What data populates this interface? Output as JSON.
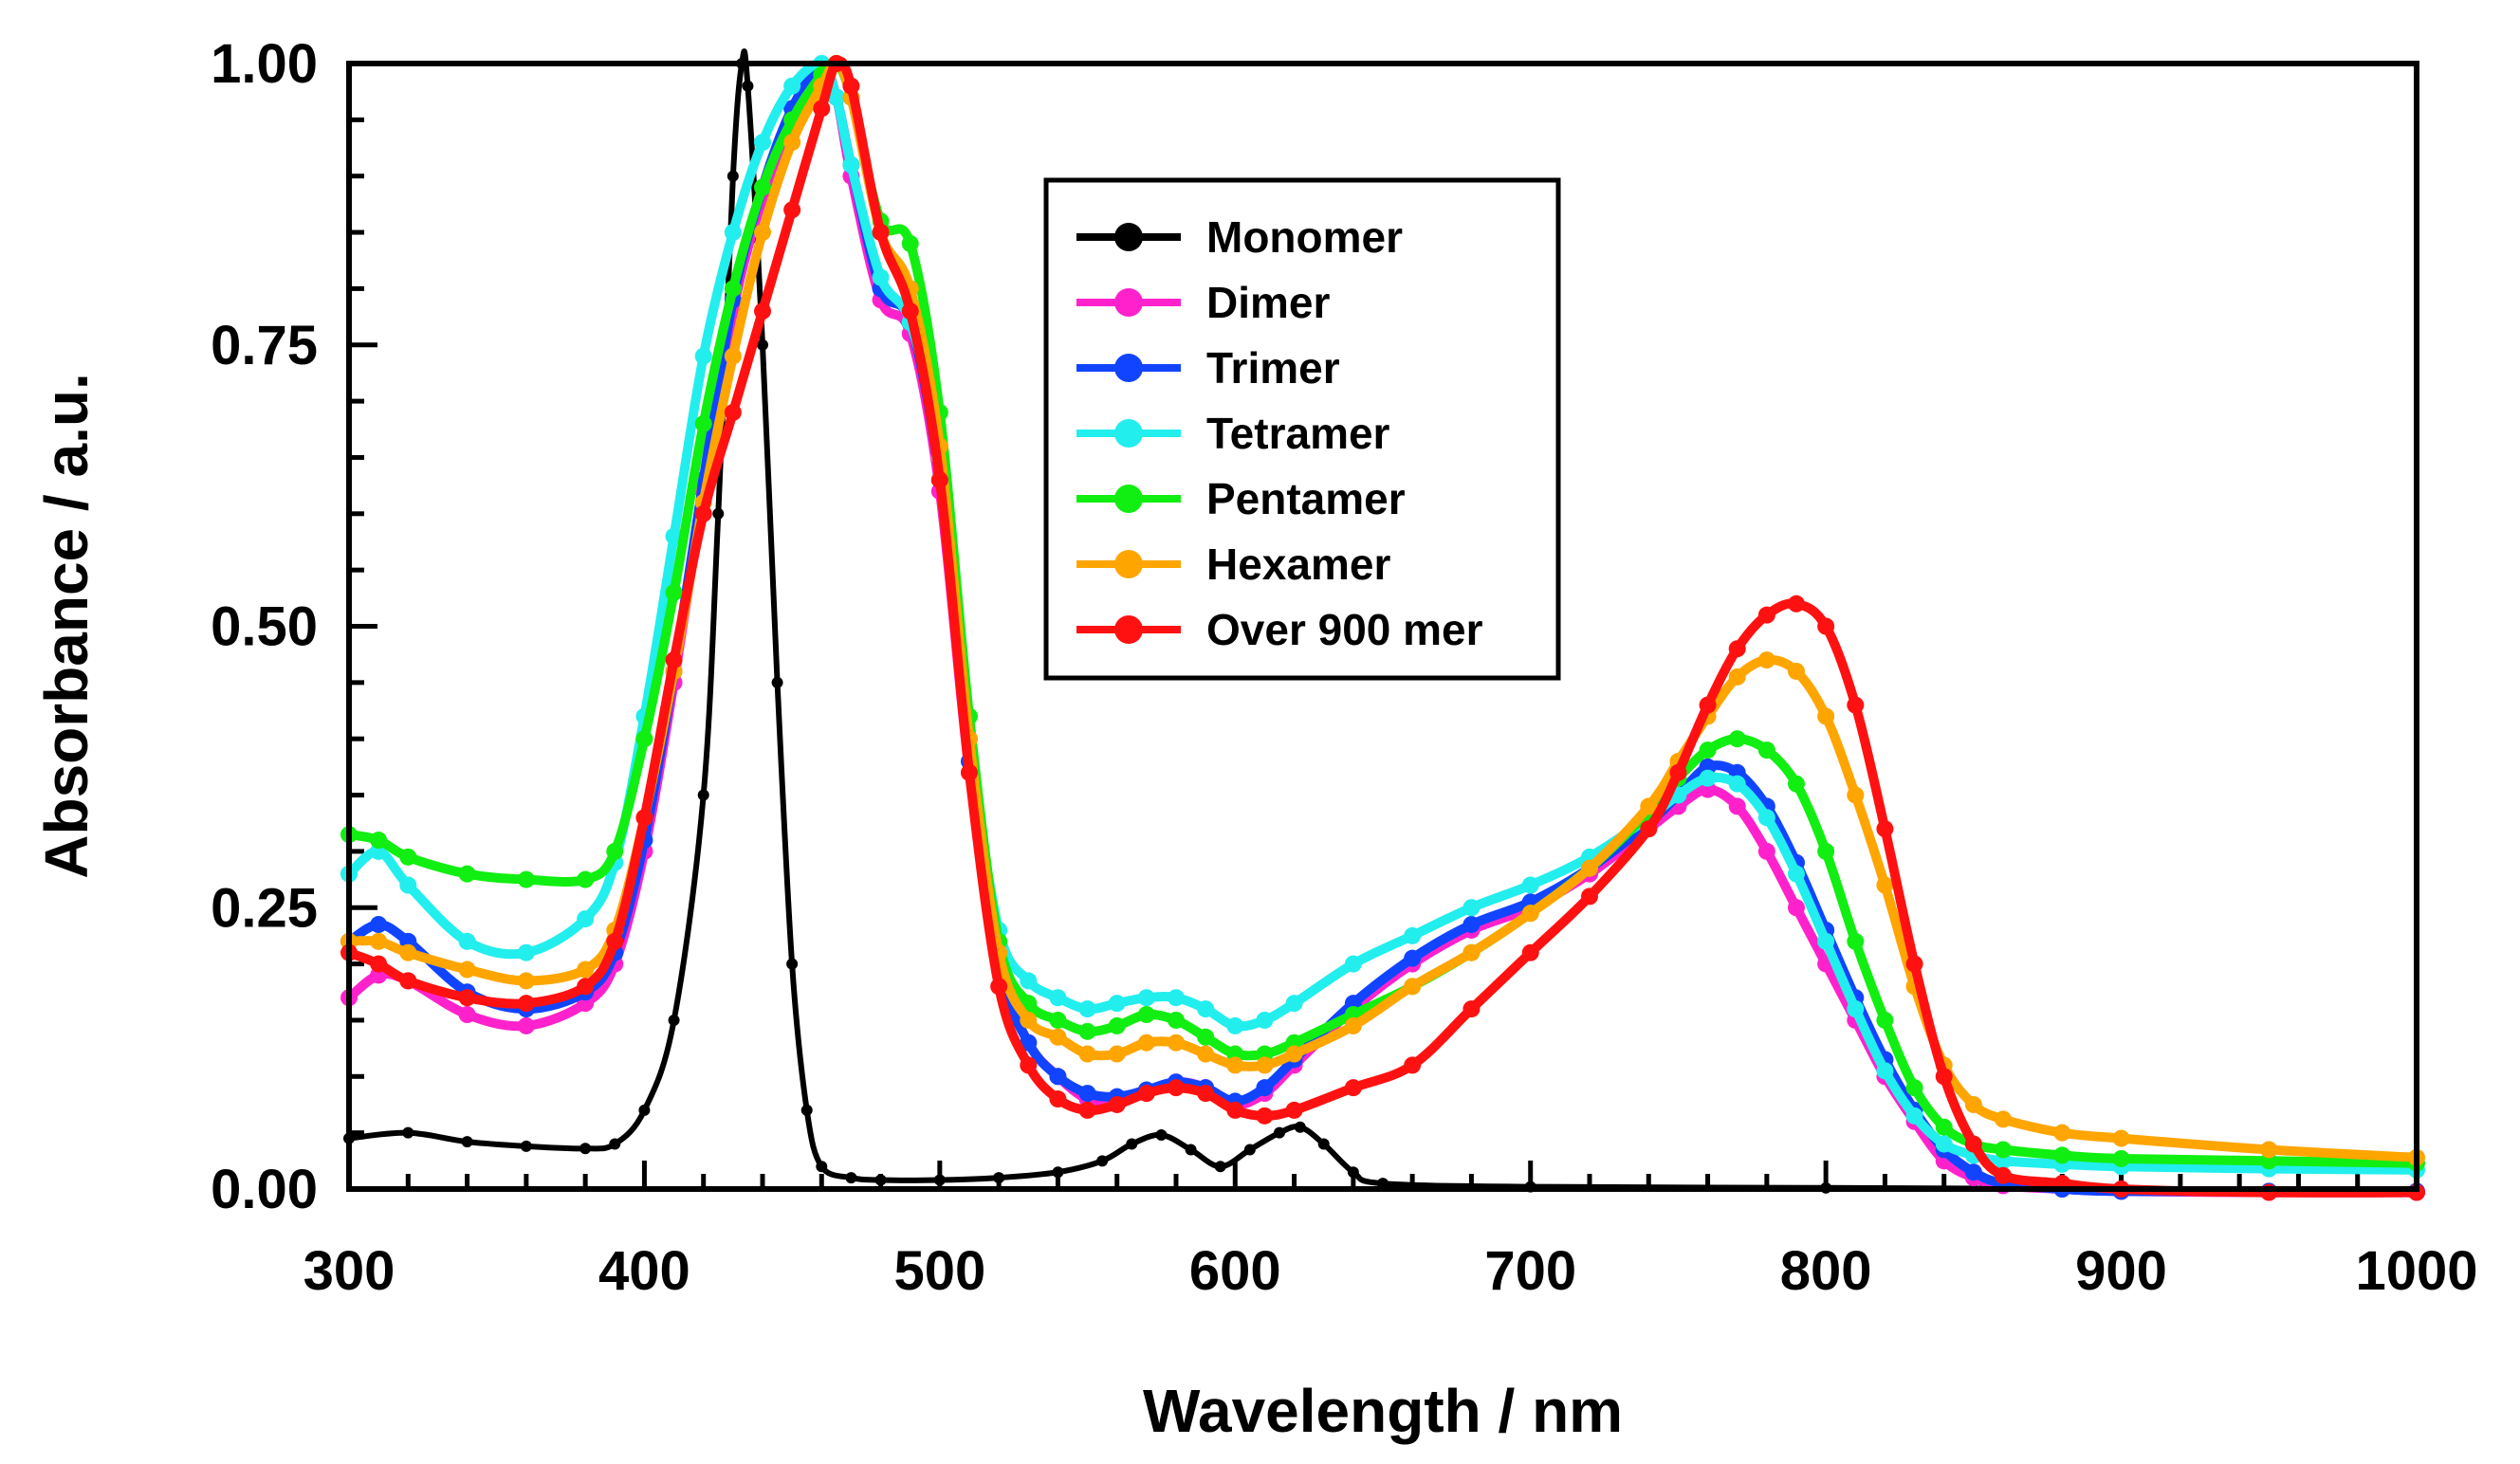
{
  "chart_data": {
    "type": "line",
    "xlabel": "Wavelength / nm",
    "ylabel": "Absorbance / a.u.",
    "xlim": [
      300,
      1000
    ],
    "ylim": [
      0,
      1
    ],
    "xticks": [
      300,
      400,
      500,
      600,
      700,
      800,
      900,
      1000
    ],
    "xtick_labels": [
      "300",
      "400",
      "500",
      "600",
      "700",
      "800",
      "900",
      "1000"
    ],
    "yticks": [
      0,
      0.25,
      0.5,
      0.75,
      1.0
    ],
    "ytick_labels": [
      "0.00",
      "0.25",
      "0.50",
      "0.75",
      "1.00"
    ],
    "legend_position": "top-center",
    "series": [
      {
        "name": "Monomer",
        "color": "#000000",
        "x": [
          300,
          320,
          340,
          360,
          380,
          390,
          400,
          410,
          420,
          425,
          430,
          433,
          435,
          440,
          445,
          450,
          455,
          460,
          470,
          480,
          500,
          520,
          540,
          555,
          565,
          575,
          585,
          595,
          605,
          615,
          622,
          630,
          640,
          650,
          700,
          800,
          900,
          1000
        ],
        "y": [
          0.045,
          0.05,
          0.042,
          0.038,
          0.036,
          0.04,
          0.07,
          0.15,
          0.35,
          0.6,
          0.9,
          1.0,
          0.98,
          0.75,
          0.45,
          0.2,
          0.07,
          0.02,
          0.01,
          0.008,
          0.008,
          0.01,
          0.015,
          0.025,
          0.04,
          0.048,
          0.035,
          0.02,
          0.035,
          0.05,
          0.055,
          0.04,
          0.015,
          0.005,
          0.002,
          0.001,
          0.0,
          0.0
        ]
      },
      {
        "name": "Dimer",
        "color": "#ff22cc",
        "x": [
          300,
          310,
          320,
          340,
          360,
          380,
          390,
          400,
          410,
          420,
          430,
          440,
          450,
          460,
          465,
          470,
          480,
          490,
          500,
          510,
          520,
          530,
          540,
          550,
          560,
          570,
          580,
          590,
          600,
          610,
          620,
          640,
          660,
          680,
          700,
          720,
          740,
          750,
          760,
          770,
          780,
          790,
          800,
          810,
          820,
          830,
          840,
          850,
          860,
          880,
          900,
          950,
          1000
        ],
        "y": [
          0.17,
          0.19,
          0.185,
          0.155,
          0.145,
          0.165,
          0.2,
          0.3,
          0.45,
          0.62,
          0.78,
          0.88,
          0.95,
          0.995,
          0.97,
          0.9,
          0.79,
          0.76,
          0.62,
          0.37,
          0.2,
          0.13,
          0.1,
          0.08,
          0.08,
          0.085,
          0.095,
          0.09,
          0.075,
          0.085,
          0.11,
          0.16,
          0.2,
          0.23,
          0.25,
          0.28,
          0.32,
          0.34,
          0.355,
          0.34,
          0.3,
          0.25,
          0.2,
          0.15,
          0.1,
          0.06,
          0.025,
          0.01,
          0.003,
          0.0,
          -0.002,
          -0.003,
          -0.003
        ]
      },
      {
        "name": "Trimer",
        "color": "#1144ff",
        "x": [
          300,
          310,
          320,
          340,
          360,
          380,
          390,
          400,
          410,
          420,
          430,
          440,
          450,
          460,
          465,
          470,
          480,
          490,
          500,
          510,
          520,
          530,
          540,
          550,
          560,
          570,
          580,
          590,
          600,
          610,
          620,
          640,
          660,
          680,
          700,
          720,
          740,
          750,
          760,
          770,
          780,
          790,
          800,
          810,
          820,
          830,
          840,
          850,
          860,
          880,
          900,
          950,
          1000
        ],
        "y": [
          0.22,
          0.235,
          0.22,
          0.175,
          0.16,
          0.175,
          0.21,
          0.31,
          0.46,
          0.63,
          0.79,
          0.89,
          0.96,
          0.998,
          0.97,
          0.91,
          0.8,
          0.77,
          0.63,
          0.38,
          0.2,
          0.13,
          0.1,
          0.085,
          0.082,
          0.088,
          0.095,
          0.09,
          0.078,
          0.09,
          0.115,
          0.165,
          0.205,
          0.235,
          0.255,
          0.285,
          0.325,
          0.35,
          0.375,
          0.37,
          0.34,
          0.29,
          0.23,
          0.17,
          0.115,
          0.07,
          0.035,
          0.015,
          0.005,
          0.0,
          -0.002,
          -0.002,
          -0.002
        ]
      },
      {
        "name": "Tetramer",
        "color": "#22eeee",
        "x": [
          300,
          310,
          320,
          340,
          360,
          380,
          390,
          400,
          410,
          420,
          430,
          440,
          450,
          460,
          465,
          470,
          480,
          490,
          500,
          510,
          520,
          530,
          540,
          550,
          560,
          570,
          580,
          590,
          600,
          610,
          620,
          640,
          660,
          680,
          700,
          720,
          740,
          750,
          760,
          770,
          780,
          790,
          800,
          810,
          820,
          830,
          840,
          850,
          860,
          880,
          900,
          950,
          1000
        ],
        "y": [
          0.28,
          0.3,
          0.27,
          0.22,
          0.21,
          0.24,
          0.29,
          0.42,
          0.58,
          0.74,
          0.85,
          0.93,
          0.98,
          1.0,
          0.97,
          0.91,
          0.81,
          0.77,
          0.65,
          0.4,
          0.23,
          0.185,
          0.17,
          0.16,
          0.165,
          0.17,
          0.17,
          0.16,
          0.145,
          0.15,
          0.165,
          0.2,
          0.225,
          0.25,
          0.27,
          0.295,
          0.33,
          0.35,
          0.365,
          0.36,
          0.33,
          0.28,
          0.22,
          0.16,
          0.105,
          0.065,
          0.04,
          0.03,
          0.025,
          0.022,
          0.02,
          0.018,
          0.017
        ]
      },
      {
        "name": "Pentamer",
        "color": "#11ee11",
        "x": [
          300,
          310,
          320,
          340,
          360,
          380,
          390,
          400,
          410,
          420,
          430,
          440,
          450,
          460,
          465,
          470,
          480,
          490,
          500,
          510,
          520,
          530,
          540,
          550,
          560,
          570,
          580,
          590,
          600,
          610,
          620,
          640,
          660,
          680,
          700,
          720,
          740,
          750,
          760,
          770,
          780,
          790,
          800,
          810,
          820,
          830,
          840,
          850,
          860,
          880,
          900,
          950,
          1000
        ],
        "y": [
          0.315,
          0.31,
          0.295,
          0.28,
          0.275,
          0.275,
          0.3,
          0.4,
          0.53,
          0.68,
          0.8,
          0.89,
          0.95,
          0.99,
          1.0,
          0.97,
          0.86,
          0.84,
          0.69,
          0.42,
          0.22,
          0.165,
          0.15,
          0.14,
          0.145,
          0.155,
          0.15,
          0.135,
          0.12,
          0.12,
          0.13,
          0.155,
          0.18,
          0.21,
          0.245,
          0.285,
          0.335,
          0.365,
          0.39,
          0.4,
          0.39,
          0.36,
          0.3,
          0.22,
          0.15,
          0.09,
          0.055,
          0.04,
          0.035,
          0.03,
          0.027,
          0.025,
          0.023
        ]
      },
      {
        "name": "Hexamer",
        "color": "#ffa500",
        "x": [
          300,
          310,
          320,
          340,
          360,
          380,
          390,
          400,
          410,
          420,
          430,
          440,
          450,
          460,
          465,
          470,
          480,
          490,
          500,
          510,
          520,
          530,
          540,
          550,
          560,
          570,
          580,
          590,
          600,
          610,
          620,
          640,
          660,
          680,
          700,
          720,
          740,
          750,
          760,
          770,
          780,
          790,
          800,
          810,
          820,
          830,
          840,
          850,
          860,
          880,
          900,
          950,
          1000
        ],
        "y": [
          0.22,
          0.22,
          0.21,
          0.195,
          0.185,
          0.195,
          0.23,
          0.33,
          0.46,
          0.61,
          0.74,
          0.85,
          0.93,
          0.98,
          1.0,
          0.97,
          0.85,
          0.8,
          0.66,
          0.4,
          0.21,
          0.15,
          0.135,
          0.12,
          0.12,
          0.13,
          0.13,
          0.12,
          0.11,
          0.11,
          0.12,
          0.145,
          0.18,
          0.21,
          0.245,
          0.285,
          0.34,
          0.38,
          0.42,
          0.455,
          0.47,
          0.46,
          0.42,
          0.35,
          0.27,
          0.18,
          0.11,
          0.075,
          0.062,
          0.05,
          0.045,
          0.035,
          0.028
        ]
      },
      {
        "name": "Over 900 mer",
        "color": "#ff1111",
        "x": [
          300,
          310,
          320,
          340,
          360,
          380,
          390,
          400,
          410,
          420,
          430,
          440,
          450,
          460,
          465,
          470,
          480,
          490,
          500,
          510,
          520,
          530,
          540,
          550,
          560,
          570,
          580,
          590,
          600,
          610,
          620,
          640,
          660,
          680,
          700,
          720,
          740,
          750,
          760,
          770,
          780,
          790,
          800,
          810,
          820,
          830,
          840,
          850,
          860,
          880,
          900,
          950,
          1000
        ],
        "y": [
          0.21,
          0.2,
          0.185,
          0.17,
          0.165,
          0.18,
          0.22,
          0.33,
          0.47,
          0.6,
          0.69,
          0.78,
          0.87,
          0.96,
          1.0,
          0.98,
          0.85,
          0.78,
          0.63,
          0.37,
          0.18,
          0.11,
          0.08,
          0.07,
          0.075,
          0.085,
          0.09,
          0.085,
          0.07,
          0.065,
          0.07,
          0.09,
          0.11,
          0.16,
          0.21,
          0.26,
          0.32,
          0.37,
          0.43,
          0.48,
          0.51,
          0.52,
          0.5,
          0.43,
          0.32,
          0.2,
          0.1,
          0.04,
          0.012,
          0.005,
          0.0,
          -0.003,
          -0.003
        ]
      }
    ]
  }
}
